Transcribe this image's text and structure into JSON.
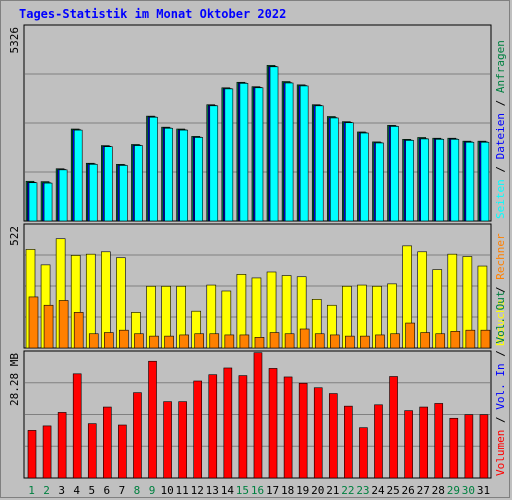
{
  "chart_data": {
    "type": "bar",
    "title": "Tages-Statistik im Monat Oktober 2022",
    "x": [
      "1",
      "2",
      "3",
      "4",
      "5",
      "6",
      "7",
      "8",
      "9",
      "10",
      "11",
      "12",
      "13",
      "14",
      "15",
      "16",
      "17",
      "18",
      "19",
      "20",
      "21",
      "22",
      "23",
      "24",
      "25",
      "26",
      "27",
      "28",
      "29",
      "30",
      "31"
    ],
    "weekend_days": [
      "1",
      "2",
      "8",
      "9",
      "15",
      "16",
      "22",
      "23",
      "29",
      "30"
    ],
    "panels": [
      {
        "name": "top",
        "ymax_label": "5326",
        "ylim": [
          0,
          5326
        ],
        "series": [
          {
            "name": "Anfragen",
            "color": "#008040",
            "values": [
              1080,
              1070,
              1420,
              2500,
              1570,
              2050,
              1540,
              2080,
              2850,
              2550,
              2500,
              2300,
              3160,
              3620,
              3770,
              3650,
              4230,
              3790,
              3700,
              3160,
              2840,
              2700,
              2420,
              2150,
              2600,
              2220,
              2270,
              2250,
              2250,
              2170,
              2170
            ]
          },
          {
            "name": "Dateien",
            "color": "#0000ff",
            "values": [
              1050,
              1040,
              1400,
              2480,
              1550,
              2030,
              1520,
              2060,
              2830,
              2530,
              2480,
              2280,
              3140,
              3600,
              3750,
              3630,
              4200,
              3760,
              3680,
              3140,
              2810,
              2680,
              2400,
              2130,
              2580,
              2200,
              2240,
              2230,
              2230,
              2150,
              2150
            ]
          },
          {
            "name": "Seiten",
            "color": "#00ffff",
            "values": [
              1040,
              1030,
              1390,
              2470,
              1540,
              2020,
              1510,
              2050,
              2820,
              2520,
              2470,
              2270,
              3130,
              3590,
              3740,
              3620,
              4190,
              3750,
              3670,
              3130,
              2800,
              2670,
              2390,
              2120,
              2570,
              2190,
              2230,
              2220,
              2220,
              2140,
              2140
            ]
          }
        ]
      },
      {
        "name": "middle",
        "ymax_label": "522",
        "ylim": [
          0,
          522
        ],
        "series": [
          {
            "name": "Besuche",
            "color": "#ffff00",
            "values": [
              415,
              350,
              460,
              390,
              395,
              405,
              380,
              150,
              260,
              260,
              260,
              155,
              265,
              240,
              310,
              295,
              320,
              305,
              300,
              205,
              180,
              260,
              265,
              260,
              270,
              430,
              405,
              330,
              395,
              385,
              345
            ]
          },
          {
            "name": "Rechner",
            "color": "#ff8000",
            "values": [
              215,
              180,
              200,
              150,
              60,
              65,
              75,
              60,
              50,
              50,
              55,
              60,
              60,
              55,
              55,
              45,
              65,
              60,
              80,
              60,
              55,
              50,
              50,
              55,
              60,
              105,
              65,
              60,
              70,
              75,
              75
            ]
          }
        ]
      },
      {
        "name": "bottom",
        "ymax_label": "28.28 MB",
        "ylim": [
          0,
          28.28
        ],
        "series": [
          {
            "name": "Vol. In",
            "color": "#0000ff",
            "values": [
              0,
              0,
              0,
              0,
              0,
              0,
              0,
              0,
              0,
              0,
              0,
              0,
              0,
              0,
              0,
              0,
              0,
              0,
              0,
              0,
              0,
              0,
              0,
              0,
              0,
              0,
              0,
              0,
              0,
              0,
              0
            ]
          },
          {
            "name": "Vol. Out",
            "color": "#008040",
            "values": [
              0,
              0,
              0,
              0,
              0,
              0,
              0,
              0,
              0,
              0,
              0,
              0,
              0,
              0,
              0,
              0,
              0,
              0,
              0,
              0,
              0,
              0,
              0,
              0,
              0,
              0,
              0,
              0,
              0,
              0,
              0
            ]
          },
          {
            "name": "Volumen",
            "color": "#ff0000",
            "values": [
              10.6,
              11.6,
              14.6,
              23.2,
              12.1,
              15.8,
              11.8,
              19.0,
              26.0,
              17.0,
              17.0,
              21.6,
              23.0,
              24.5,
              22.8,
              27.9,
              24.4,
              22.5,
              21.1,
              20.1,
              18.8,
              16.0,
              11.2,
              16.3,
              22.6,
              15.0,
              15.8,
              16.6,
              13.3,
              14.1,
              14.1
            ]
          }
        ]
      }
    ],
    "legend_right": [
      {
        "panel": "top",
        "items": [
          {
            "text": "Seiten",
            "color": "#00ffff"
          },
          {
            "text": "Dateien",
            "color": "#0000ff"
          },
          {
            "text": "Anfragen",
            "color": "#008040"
          }
        ]
      },
      {
        "panel": "middle",
        "items": [
          {
            "text": "Besuche",
            "color": "#ffff00"
          },
          {
            "text": "Rechner",
            "color": "#ff8000"
          }
        ]
      },
      {
        "panel": "bottom",
        "items": [
          {
            "text": "Volumen",
            "color": "#ff0000"
          },
          {
            "text": "Vol. In",
            "color": "#0000ff"
          },
          {
            "text": "Vol. Out",
            "color": "#008040"
          }
        ]
      }
    ],
    "separator": " / ",
    "grid": true
  }
}
